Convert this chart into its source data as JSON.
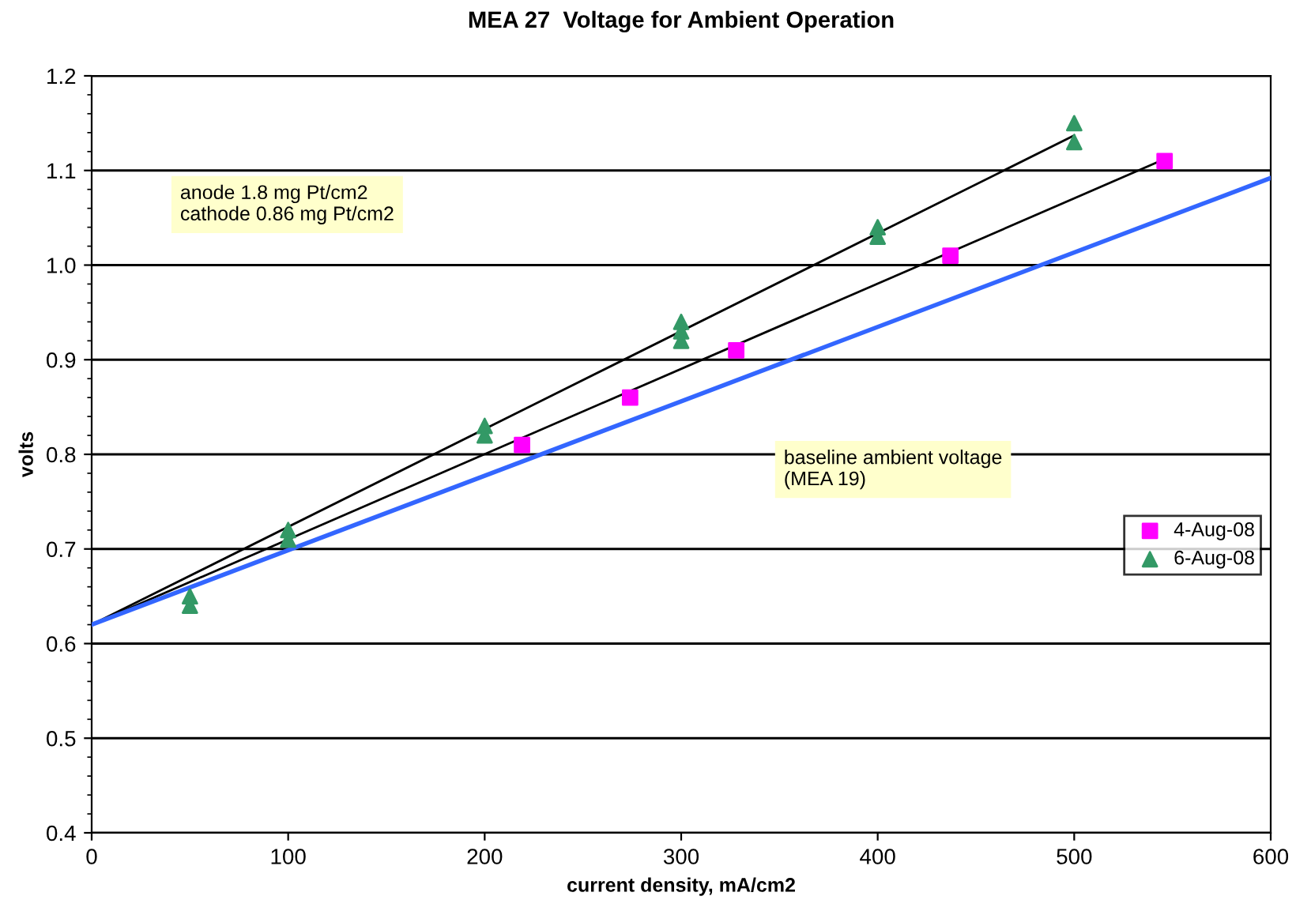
{
  "chart_data": {
    "type": "scatter",
    "title": "MEA 27  Voltage for Ambient Operation",
    "xlabel": "current density, mA/cm2",
    "ylabel": "volts",
    "series": [
      {
        "name": "4-Aug-08",
        "marker": "square",
        "color": "#ff00ff",
        "x": [
          219,
          274,
          328,
          437,
          546
        ],
        "values": [
          0.81,
          0.86,
          0.91,
          1.01,
          1.11
        ]
      },
      {
        "name": "6-Aug-08",
        "marker": "triangle",
        "color": "#339966",
        "x": [
          50,
          50,
          100,
          100,
          200,
          200,
          300,
          300,
          300,
          400,
          400,
          500,
          500
        ],
        "values": [
          0.65,
          0.64,
          0.72,
          0.71,
          0.83,
          0.82,
          0.94,
          0.93,
          0.92,
          1.04,
          1.03,
          1.15,
          1.13
        ]
      },
      {
        "type": "line",
        "color": "#000000",
        "x": [
          0,
          500
        ],
        "values": [
          0.62,
          1.137
        ]
      },
      {
        "type": "line",
        "color": "#000000",
        "x": [
          0,
          546
        ],
        "values": [
          0.62,
          1.112
        ]
      },
      {
        "type": "line",
        "color": "#3366ff",
        "x": [
          0,
          600
        ],
        "values": [
          0.62,
          1.092
        ]
      }
    ],
    "annotations": [
      "anode 1.8 mg Pt/cm2\ncathode 0.86 mg Pt/cm2",
      "baseline ambient voltage\n(MEA 19)"
    ],
    "xlim": [
      0,
      600
    ],
    "xticks": [
      0,
      100,
      200,
      300,
      400,
      500,
      600
    ],
    "ylim": [
      0.4,
      1.2
    ],
    "yticks": [
      0.4,
      0.5,
      0.6,
      0.7,
      0.8,
      0.9,
      {
        "value": 1.0,
        "label": "1.0"
      },
      1.1,
      1.2
    ],
    "grid": "y",
    "legend": "right"
  }
}
